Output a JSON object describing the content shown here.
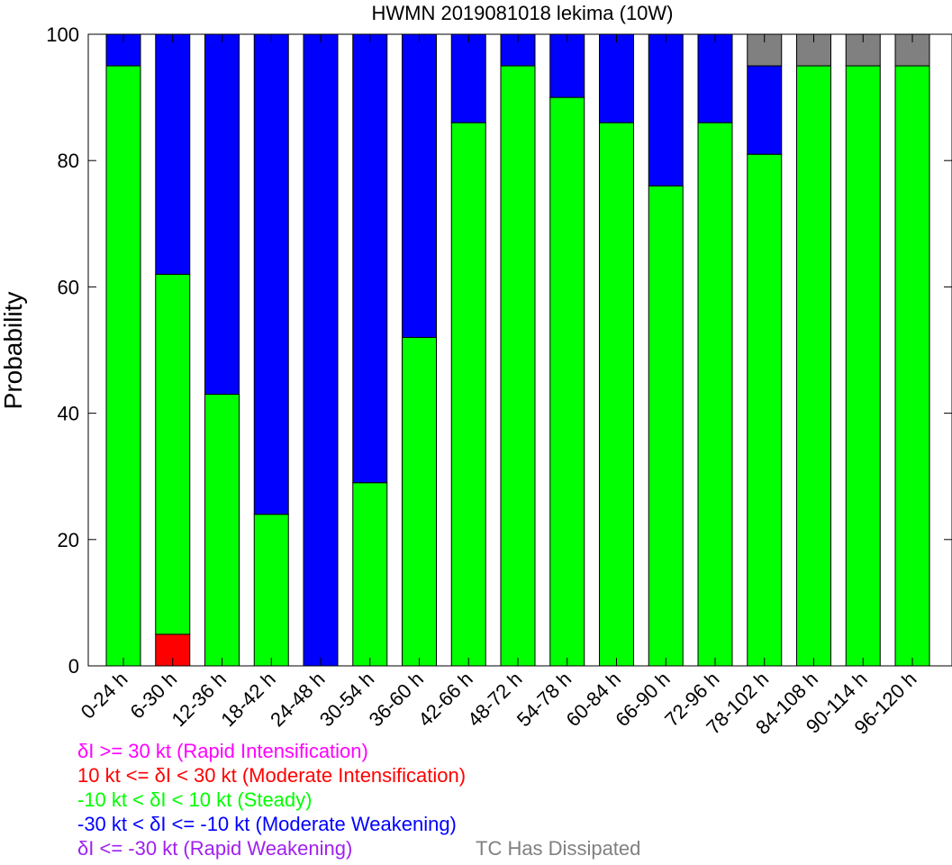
{
  "chart_data": {
    "type": "bar",
    "stacked": true,
    "title": "HWMN 2019081018 lekima (10W)",
    "xlabel": "",
    "ylabel": "Probability",
    "ylim": [
      0,
      100
    ],
    "yticks": [
      0,
      20,
      40,
      60,
      80,
      100
    ],
    "grid": false,
    "legend_position": "bottom-left",
    "categories": [
      "0-24 h",
      "6-30 h",
      "12-36 h",
      "18-42 h",
      "24-48 h",
      "30-54 h",
      "36-60 h",
      "42-66 h",
      "48-72 h",
      "54-78 h",
      "60-84 h",
      "66-90 h",
      "72-96 h",
      "78-102 h",
      "84-108 h",
      "90-114 h",
      "96-120 h"
    ],
    "series": [
      {
        "name": "δI >= 30 kt (Rapid Intensification)",
        "color": "#ff00ff",
        "values": [
          0,
          0,
          0,
          0,
          0,
          0,
          0,
          0,
          0,
          0,
          0,
          0,
          0,
          0,
          0,
          0,
          0
        ]
      },
      {
        "name": "10 kt <= δI < 30 kt (Moderate Intensification)",
        "color": "#ff0000",
        "values": [
          0,
          5,
          0,
          0,
          0,
          0,
          0,
          0,
          0,
          0,
          0,
          0,
          0,
          0,
          0,
          0,
          0
        ]
      },
      {
        "name": "-10 kt < δI < 10 kt (Steady)",
        "color": "#00ff00",
        "values": [
          95,
          57,
          43,
          24,
          0,
          29,
          52,
          86,
          95,
          90,
          86,
          76,
          86,
          81,
          95,
          95,
          95
        ]
      },
      {
        "name": "-30 kt < δI <= -10 kt (Moderate Weakening)",
        "color": "#0000ff",
        "values": [
          5,
          38,
          57,
          76,
          100,
          71,
          48,
          14,
          5,
          10,
          14,
          24,
          14,
          14,
          0,
          0,
          0
        ]
      },
      {
        "name": "δI <= -30 kt (Rapid Weakening)",
        "color": "#a020f0",
        "values": [
          0,
          0,
          0,
          0,
          0,
          0,
          0,
          0,
          0,
          0,
          0,
          0,
          0,
          0,
          0,
          0,
          0
        ]
      },
      {
        "name": "TC Has Dissipated",
        "color": "#808080",
        "values": [
          0,
          0,
          0,
          0,
          0,
          0,
          0,
          0,
          0,
          0,
          0,
          0,
          0,
          5,
          5,
          5,
          5
        ]
      }
    ]
  }
}
